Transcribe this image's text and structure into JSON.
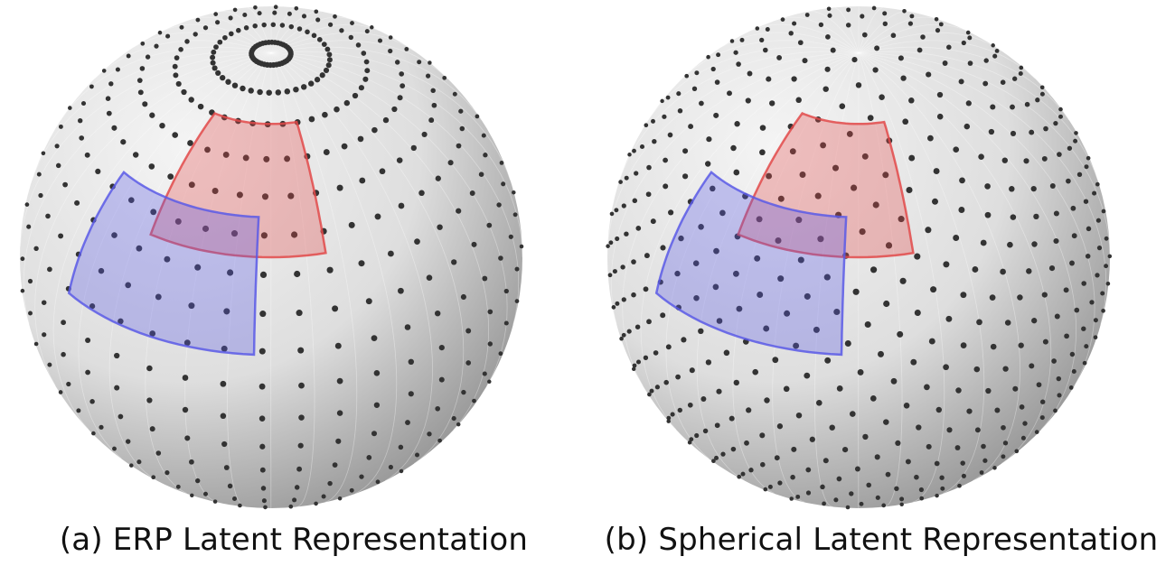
{
  "figures": [
    {
      "id": "a",
      "caption": "(a) ERP Latent Representation",
      "sampling": "erp",
      "patch_colors": {
        "red": "#e24a4a",
        "blue": "#5a5ae6"
      }
    },
    {
      "id": "b",
      "caption": "(b) Spherical Latent Representation",
      "sampling": "spherical",
      "patch_colors": {
        "red": "#e24a4a",
        "blue": "#5a5ae6"
      }
    }
  ],
  "colors": {
    "dot": "#333333",
    "sphere_light": "#f4f4f4",
    "sphere_dark": "#8a8a8a"
  }
}
